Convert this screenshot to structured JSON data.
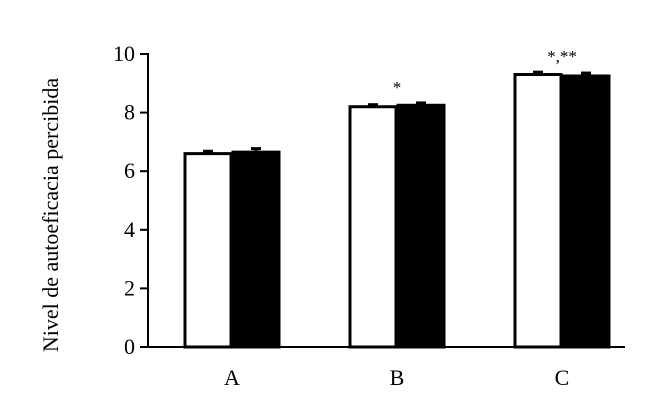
{
  "chart_data": {
    "type": "bar",
    "title": "",
    "xlabel": "",
    "ylabel": "Nivel de autoeficacia percibida",
    "categories": [
      "A",
      "B",
      "C"
    ],
    "ylim": [
      0,
      10
    ],
    "yticks": [
      0,
      2,
      4,
      6,
      8,
      10
    ],
    "ytick_labels": [
      "0",
      "2",
      "4",
      "6",
      "8",
      "10"
    ],
    "grid": false,
    "legend": "none",
    "series": [
      {
        "fill": "#ffffff",
        "values": [
          6.6,
          8.2,
          9.3
        ],
        "errors": [
          0.08,
          0.07,
          0.08
        ]
      },
      {
        "fill": "#000000",
        "values": [
          6.65,
          8.25,
          9.25
        ],
        "errors": [
          0.12,
          0.08,
          0.1
        ]
      }
    ],
    "annotations": [
      {
        "category": "B",
        "text": "*"
      },
      {
        "category": "C",
        "text": "*,**"
      }
    ]
  }
}
